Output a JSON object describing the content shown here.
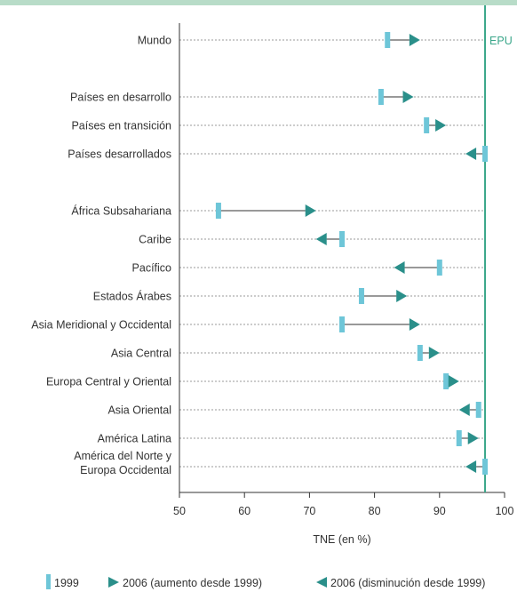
{
  "chart_data": {
    "type": "dot-arrow",
    "xlabel": "TNE (en %)",
    "xlim": [
      50,
      100
    ],
    "xticks": [
      50,
      60,
      70,
      80,
      90,
      100
    ],
    "reference_line": {
      "label": "EPU",
      "value": 97
    },
    "categories": [
      [
        "Mundo"
      ],
      [],
      [
        "Países en desarrollo"
      ],
      [
        "Países en transición"
      ],
      [
        "Países desarrollados"
      ],
      [],
      [
        "África Subsahariana"
      ],
      [
        "Caribe"
      ],
      [
        "Pacífico"
      ],
      [
        "Estados Árabes"
      ],
      [
        "Asia Meridional y Occidental"
      ],
      [
        "Asia Central"
      ],
      [
        "Europa Central y Oriental"
      ],
      [
        "Asia Oriental"
      ],
      [
        "América Latina"
      ],
      [
        "América del Norte y",
        "Europa Occidental"
      ]
    ],
    "series": [
      {
        "name": "1999",
        "values": [
          82,
          null,
          81,
          88,
          97,
          null,
          56,
          75,
          90,
          78,
          75,
          87,
          91,
          96,
          93,
          97
        ]
      },
      {
        "name": "2006",
        "values": [
          87,
          null,
          86,
          91,
          94,
          null,
          71,
          71,
          83,
          85,
          87,
          90,
          93,
          93,
          96,
          94
        ]
      }
    ],
    "legend": {
      "position": "bottom",
      "items": [
        "1999",
        "2006 (aumento desde 1999)",
        "2006 (disminución desde 1999)"
      ]
    },
    "colors": {
      "marker_1999": "#6ec6d8",
      "marker_2006": "#2a8f8a",
      "reference": "#3aa68a",
      "top_band": "#b8dcc8",
      "guide": "#9a9a9a"
    }
  }
}
